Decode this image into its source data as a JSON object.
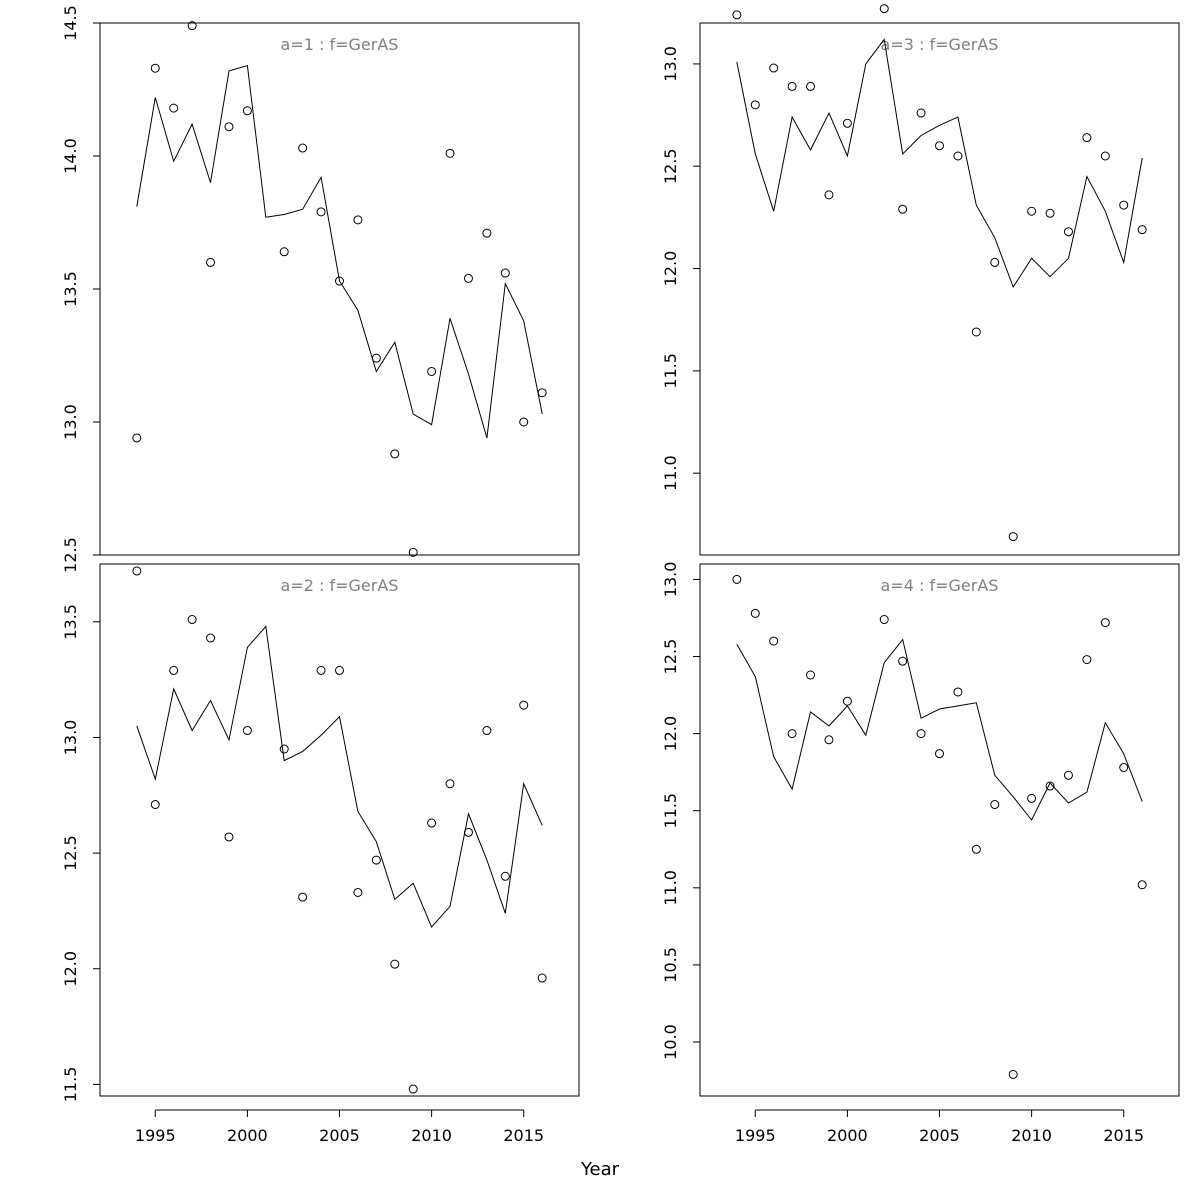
{
  "xlabel": "Year",
  "chart_data": [
    {
      "type": "line",
      "title": "a=1  :  f=GerAS",
      "xlabel": "Year",
      "ylim": [
        12.5,
        14.5
      ],
      "yticks": [
        12.5,
        13.0,
        13.5,
        14.0,
        14.5
      ],
      "ytick_labels": [
        "12.5",
        "13.0",
        "13.5",
        "14.0",
        "14.5"
      ],
      "show_xaxis": false,
      "x": [
        1994,
        1995,
        1996,
        1997,
        1998,
        1999,
        2000,
        2001,
        2002,
        2003,
        2004,
        2005,
        2006,
        2007,
        2008,
        2009,
        2010,
        2011,
        2012,
        2013,
        2014,
        2015,
        2016
      ],
      "observed": [
        12.94,
        14.33,
        14.18,
        14.49,
        13.6,
        14.11,
        14.17,
        null,
        13.64,
        14.03,
        13.79,
        13.53,
        13.76,
        13.24,
        12.88,
        12.51,
        13.19,
        14.01,
        13.54,
        13.71,
        13.56,
        13.0,
        13.11
      ],
      "fitted": [
        13.81,
        14.22,
        13.98,
        14.12,
        13.9,
        14.32,
        14.34,
        13.77,
        13.78,
        13.8,
        13.92,
        13.53,
        13.42,
        13.19,
        13.3,
        13.03,
        12.99,
        13.39,
        13.18,
        12.94,
        13.52,
        13.38,
        13.03
      ]
    },
    {
      "type": "line",
      "title": "a=3  :  f=GerAS",
      "xlabel": "Year",
      "ylim": [
        10.6,
        13.2
      ],
      "yticks": [
        11.0,
        11.5,
        12.0,
        12.5,
        13.0
      ],
      "ytick_labels": [
        "11.0",
        "11.5",
        "12.0",
        "12.5",
        "13.0"
      ],
      "show_xaxis": false,
      "x": [
        1994,
        1995,
        1996,
        1997,
        1998,
        1999,
        2000,
        2001,
        2002,
        2003,
        2004,
        2005,
        2006,
        2007,
        2008,
        2009,
        2010,
        2011,
        2012,
        2013,
        2014,
        2015,
        2016
      ],
      "observed": [
        13.24,
        12.8,
        12.98,
        12.89,
        12.89,
        12.36,
        12.71,
        null,
        13.27,
        12.29,
        12.76,
        12.6,
        12.55,
        11.69,
        12.03,
        10.69,
        12.28,
        12.27,
        12.18,
        12.64,
        12.55,
        12.31,
        12.19
      ],
      "fitted": [
        13.01,
        12.56,
        12.28,
        12.74,
        12.58,
        12.76,
        12.55,
        13.0,
        13.12,
        12.56,
        12.65,
        12.7,
        12.74,
        12.31,
        12.15,
        11.91,
        12.05,
        11.96,
        12.05,
        12.45,
        12.28,
        12.03,
        12.54
      ]
    },
    {
      "type": "line",
      "title": "a=2  :  f=GerAS",
      "xlabel": "Year",
      "ylim": [
        11.45,
        13.75
      ],
      "yticks": [
        11.5,
        12.0,
        12.5,
        13.0,
        13.5
      ],
      "ytick_labels": [
        "11.5",
        "12.0",
        "12.5",
        "13.0",
        "13.5"
      ],
      "show_xaxis": true,
      "xlim": [
        1992,
        2018
      ],
      "xticks": [
        1995,
        2000,
        2005,
        2010,
        2015
      ],
      "xtick_labels": [
        "1995",
        "2000",
        "2005",
        "2010",
        "2015"
      ],
      "x": [
        1994,
        1995,
        1996,
        1997,
        1998,
        1999,
        2000,
        2001,
        2002,
        2003,
        2004,
        2005,
        2006,
        2007,
        2008,
        2009,
        2010,
        2011,
        2012,
        2013,
        2014,
        2015,
        2016
      ],
      "observed": [
        13.72,
        12.71,
        13.29,
        13.51,
        13.43,
        12.57,
        13.03,
        null,
        12.95,
        12.31,
        13.29,
        13.29,
        12.33,
        12.47,
        12.02,
        11.48,
        12.63,
        12.8,
        12.59,
        13.03,
        12.4,
        13.14,
        11.96
      ],
      "fitted": [
        13.05,
        12.82,
        13.21,
        13.03,
        13.16,
        12.99,
        13.39,
        13.48,
        12.9,
        12.94,
        13.01,
        13.09,
        12.68,
        12.55,
        12.3,
        12.37,
        12.18,
        12.27,
        12.67,
        12.47,
        12.24,
        12.8,
        12.62
      ]
    },
    {
      "type": "line",
      "title": "a=4  :  f=GerAS",
      "xlabel": "Year",
      "ylim": [
        9.65,
        13.1
      ],
      "yticks": [
        10.0,
        10.5,
        11.0,
        11.5,
        12.0,
        12.5,
        13.0
      ],
      "ytick_labels": [
        "10.0",
        "10.5",
        "11.0",
        "11.5",
        "12.0",
        "12.5",
        "13.0"
      ],
      "show_xaxis": true,
      "xlim": [
        1992,
        2018
      ],
      "xticks": [
        1995,
        2000,
        2005,
        2010,
        2015
      ],
      "xtick_labels": [
        "1995",
        "2000",
        "2005",
        "2010",
        "2015"
      ],
      "x": [
        1994,
        1995,
        1996,
        1997,
        1998,
        1999,
        2000,
        2001,
        2002,
        2003,
        2004,
        2005,
        2006,
        2007,
        2008,
        2009,
        2010,
        2011,
        2012,
        2013,
        2014,
        2015,
        2016
      ],
      "observed": [
        13.0,
        12.78,
        12.6,
        12.0,
        12.38,
        11.96,
        12.21,
        null,
        12.74,
        12.47,
        12.0,
        11.87,
        12.27,
        11.25,
        11.54,
        9.79,
        11.58,
        11.66,
        11.73,
        12.48,
        12.72,
        11.78,
        11.02
      ],
      "fitted": [
        12.58,
        12.37,
        11.85,
        11.64,
        12.14,
        12.05,
        12.18,
        11.99,
        12.46,
        12.61,
        12.1,
        12.16,
        12.18,
        12.2,
        11.73,
        11.59,
        11.44,
        11.68,
        11.55,
        11.62,
        12.07,
        11.87,
        11.56
      ]
    }
  ]
}
